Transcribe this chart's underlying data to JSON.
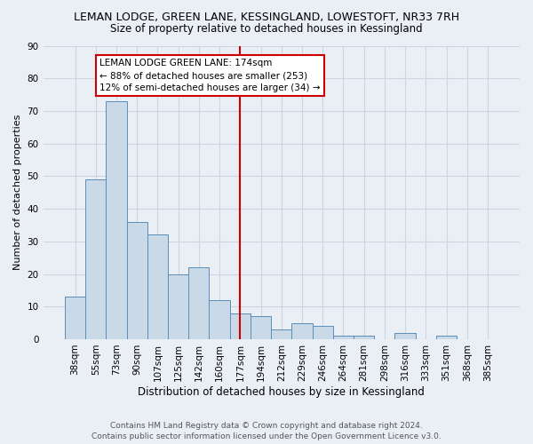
{
  "title": "LEMAN LODGE, GREEN LANE, KESSINGLAND, LOWESTOFT, NR33 7RH",
  "subtitle": "Size of property relative to detached houses in Kessingland",
  "xlabel": "Distribution of detached houses by size in Kessingland",
  "ylabel": "Number of detached properties",
  "categories": [
    "38sqm",
    "55sqm",
    "73sqm",
    "90sqm",
    "107sqm",
    "125sqm",
    "142sqm",
    "160sqm",
    "177sqm",
    "194sqm",
    "212sqm",
    "229sqm",
    "246sqm",
    "264sqm",
    "281sqm",
    "298sqm",
    "316sqm",
    "333sqm",
    "351sqm",
    "368sqm",
    "385sqm"
  ],
  "values": [
    13,
    49,
    73,
    36,
    32,
    20,
    22,
    12,
    8,
    7,
    3,
    5,
    4,
    1,
    1,
    0,
    2,
    0,
    1,
    0,
    0
  ],
  "bar_color": "#c9d9e8",
  "bar_edge_color": "#5b8db8",
  "vline_x_index": 8,
  "vline_color": "#cc0000",
  "annotation_text": "LEMAN LODGE GREEN LANE: 174sqm\n← 88% of detached houses are smaller (253)\n12% of semi-detached houses are larger (34) →",
  "annotation_box_color": "#ffffff",
  "annotation_box_edge_color": "#cc0000",
  "ylim": [
    0,
    90
  ],
  "yticks": [
    0,
    10,
    20,
    30,
    40,
    50,
    60,
    70,
    80,
    90
  ],
  "footer": "Contains HM Land Registry data © Crown copyright and database right 2024.\nContains public sector information licensed under the Open Government Licence v3.0.",
  "grid_color": "#cdd5e0",
  "background_color": "#eaeff5",
  "title_fontsize": 9,
  "subtitle_fontsize": 8.5,
  "xlabel_fontsize": 8.5,
  "ylabel_fontsize": 8,
  "tick_fontsize": 7.5,
  "annotation_fontsize": 7.5,
  "footer_fontsize": 6.5
}
